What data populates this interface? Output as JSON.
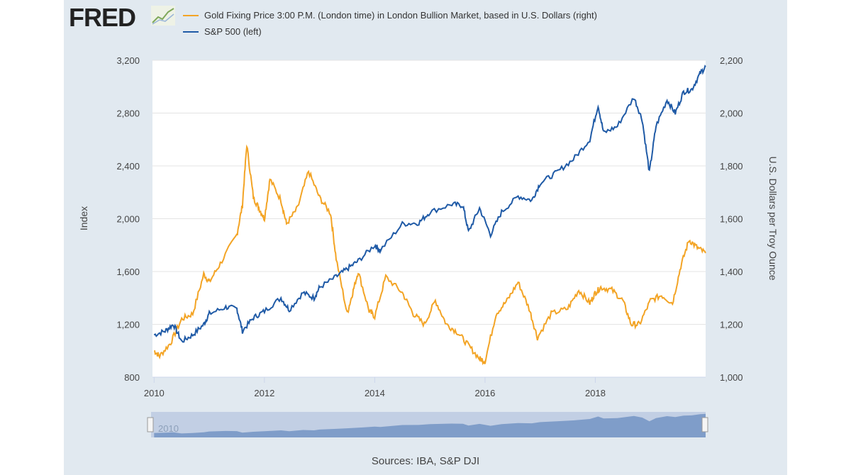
{
  "logo": "FRED",
  "colors": {
    "gold": "#f3a425",
    "sp500": "#1f5aa6",
    "panel": "#e1e9f0",
    "navigator": "#7f9dc9"
  },
  "sources": "Sources: IBA, S&P DJI",
  "chart_data": {
    "type": "line",
    "xlabel": "",
    "ylabel_left": "Index",
    "ylabel_right": "U.S. Dollars per Troy Ounce",
    "xlim": [
      2009.97,
      2020.0
    ],
    "ylim_left": [
      800,
      3200
    ],
    "ylim_right": [
      1000,
      2200
    ],
    "x_ticks": [
      "2010",
      "2012",
      "2014",
      "2016",
      "2018"
    ],
    "x_tick_values": [
      2010,
      2012,
      2014,
      2016,
      2018
    ],
    "left_ticks": [
      "800",
      "1,200",
      "1,600",
      "2,000",
      "2,400",
      "2,800",
      "3,200"
    ],
    "left_tick_values": [
      800,
      1200,
      1600,
      2000,
      2400,
      2800,
      3200
    ],
    "right_ticks": [
      "1,000",
      "1,200",
      "1,400",
      "1,600",
      "1,800",
      "2,000",
      "2,200"
    ],
    "right_tick_values": [
      1000,
      1200,
      1400,
      1600,
      1800,
      2000,
      2200
    ],
    "grid": true,
    "legend_placement": "top",
    "navigator_label": "2010",
    "series": [
      {
        "name": "Gold Fixing Price 3:00 P.M. (London time) in London Bullion Market, based in U.S. Dollars (right)",
        "axis": "right",
        "color": "#f3a425",
        "x": [
          2010,
          2010.1,
          2010.3,
          2010.5,
          2010.7,
          2010.9,
          2011,
          2011.2,
          2011.5,
          2011.6,
          2011.68,
          2011.8,
          2011.9,
          2012,
          2012.1,
          2012.3,
          2012.4,
          2012.6,
          2012.8,
          2013,
          2013.2,
          2013.3,
          2013.5,
          2013.6,
          2013.7,
          2013.9,
          2014,
          2014.2,
          2014.5,
          2014.7,
          2014.9,
          2015.1,
          2015.3,
          2015.5,
          2015.7,
          2015.9,
          2016,
          2016.2,
          2016.4,
          2016.6,
          2016.8,
          2016.95,
          2017.2,
          2017.5,
          2017.7,
          2017.9,
          2018,
          2018.1,
          2018.3,
          2018.5,
          2018.65,
          2018.8,
          2019,
          2019.2,
          2019.4,
          2019.55,
          2019.7,
          2019.85,
          2020.0
        ],
        "values": [
          1100,
          1080,
          1130,
          1220,
          1240,
          1390,
          1360,
          1430,
          1540,
          1650,
          1880,
          1680,
          1640,
          1600,
          1750,
          1670,
          1580,
          1640,
          1780,
          1680,
          1620,
          1450,
          1240,
          1320,
          1400,
          1250,
          1230,
          1380,
          1320,
          1240,
          1200,
          1290,
          1200,
          1170,
          1120,
          1070,
          1060,
          1240,
          1290,
          1360,
          1260,
          1150,
          1240,
          1260,
          1330,
          1280,
          1320,
          1340,
          1330,
          1290,
          1200,
          1200,
          1290,
          1310,
          1280,
          1420,
          1520,
          1490,
          1470
        ]
      },
      {
        "name": "S&P 500 (left)",
        "axis": "left",
        "color": "#1f5aa6",
        "x": [
          2010,
          2010.2,
          2010.35,
          2010.5,
          2010.7,
          2010.9,
          2011,
          2011.3,
          2011.5,
          2011.6,
          2011.8,
          2012,
          2012.3,
          2012.45,
          2012.7,
          2012.9,
          2013,
          2013.3,
          2013.5,
          2013.7,
          2014,
          2014.1,
          2014.5,
          2014.8,
          2015,
          2015.4,
          2015.6,
          2015.7,
          2015.9,
          2016.1,
          2016.3,
          2016.6,
          2016.85,
          2017,
          2017.3,
          2017.6,
          2017.9,
          2018.05,
          2018.15,
          2018.4,
          2018.7,
          2018.85,
          2018.98,
          2019.1,
          2019.3,
          2019.45,
          2019.6,
          2019.75,
          2019.9,
          2020.0
        ],
        "values": [
          1120,
          1150,
          1200,
          1070,
          1120,
          1200,
          1280,
          1330,
          1320,
          1150,
          1250,
          1300,
          1400,
          1310,
          1440,
          1400,
          1480,
          1560,
          1620,
          1680,
          1800,
          1760,
          1960,
          1970,
          2050,
          2110,
          2100,
          1900,
          2080,
          1880,
          2050,
          2170,
          2140,
          2270,
          2350,
          2450,
          2600,
          2860,
          2650,
          2700,
          2920,
          2750,
          2350,
          2700,
          2900,
          2800,
          2960,
          2980,
          3100,
          3150
        ]
      }
    ]
  }
}
